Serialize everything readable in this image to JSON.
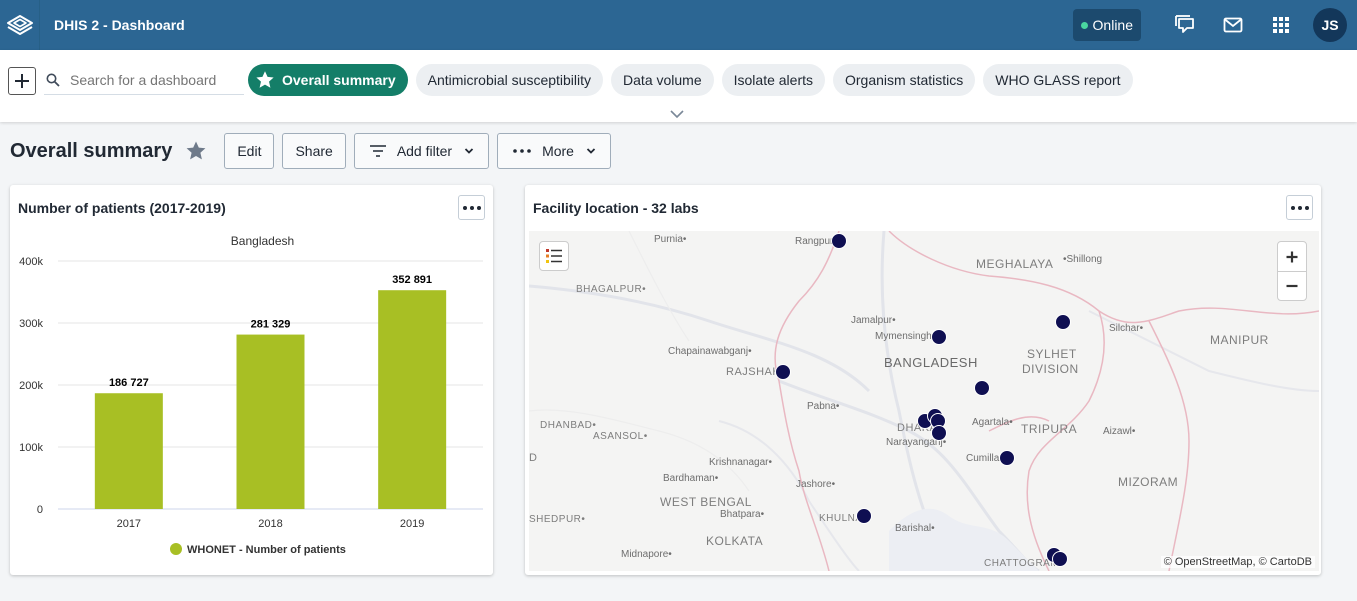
{
  "header": {
    "app_title": "DHIS 2 - Dashboard",
    "online_label": "Online",
    "avatar_initials": "JS",
    "colors": {
      "bar": "#2c6693",
      "online_dot": "#4ad6a0"
    }
  },
  "dashboard_bar": {
    "search_placeholder": "Search for a dashboard",
    "chips": [
      {
        "label": "Overall summary",
        "selected": true,
        "icon": "star-icon"
      },
      {
        "label": "Antimicrobial susceptibility",
        "selected": false
      },
      {
        "label": "Data volume",
        "selected": false
      },
      {
        "label": "Isolate alerts",
        "selected": false
      },
      {
        "label": "Organism statistics",
        "selected": false
      },
      {
        "label": "WHO GLASS report",
        "selected": false
      }
    ]
  },
  "title_bar": {
    "title": "Overall summary",
    "edit_label": "Edit",
    "share_label": "Share",
    "add_filter_label": "Add filter",
    "more_label": "More"
  },
  "patients_card": {
    "title": "Number of patients (2017-2019)"
  },
  "chart_data": {
    "type": "bar",
    "subtitle": "Bangladesh",
    "categories": [
      "2017",
      "2018",
      "2019"
    ],
    "series": [
      {
        "name": "WHONET - Number of patients",
        "values": [
          186727,
          281329,
          352891
        ],
        "labels": [
          "186 727",
          "281 329",
          "352 891"
        ],
        "color": "#a8bf24"
      }
    ],
    "ylim": [
      0,
      400000
    ],
    "yticks": [
      0,
      100000,
      200000,
      300000,
      400000
    ],
    "ytick_labels": [
      "0",
      "100k",
      "200k",
      "300k",
      "400k"
    ],
    "grid": true,
    "legend": "bottom-center"
  },
  "map_card": {
    "title": "Facility location - 32 labs",
    "attribution": "© OpenStreetMap, © CartoDB",
    "labels": [
      {
        "text": "Purnia•",
        "cls": ""
      },
      {
        "text": "Rangpur•",
        "cls": ""
      },
      {
        "text": "MEGHALAYA",
        "cls": "big"
      },
      {
        "text": "•Shillong",
        "cls": ""
      },
      {
        "text": "BHAGALPUR•",
        "cls": "big-s"
      },
      {
        "text": "Jamalpur•",
        "cls": ""
      },
      {
        "text": "Mymensingh•",
        "cls": ""
      },
      {
        "text": "Silchar•",
        "cls": ""
      },
      {
        "text": "MANIPUR",
        "cls": "big"
      },
      {
        "text": "SYLHET",
        "cls": "big"
      },
      {
        "text": "DIVISION",
        "cls": "big"
      },
      {
        "text": "Chapainawabganj•",
        "cls": ""
      },
      {
        "text": "BANGLADESH",
        "cls": "country"
      },
      {
        "text": "RAJSHAHI",
        "cls": "big-s"
      },
      {
        "text": "Pabna•",
        "cls": ""
      },
      {
        "text": "DHANBAD•",
        "cls": "big-s"
      },
      {
        "text": "ASANSOL•",
        "cls": "big-s"
      },
      {
        "text": "DHAKA",
        "cls": "big-s"
      },
      {
        "text": "Agartala•",
        "cls": ""
      },
      {
        "text": "TRIPURA",
        "cls": "big"
      },
      {
        "text": "Aizawl•",
        "cls": ""
      },
      {
        "text": "Narayanganj•",
        "cls": ""
      },
      {
        "text": "Krishnanagar•",
        "cls": ""
      },
      {
        "text": "Cumilla",
        "cls": ""
      },
      {
        "text": "Bardhaman•",
        "cls": ""
      },
      {
        "text": "MIZORAM",
        "cls": "big"
      },
      {
        "text": "D",
        "cls": "big-s"
      },
      {
        "text": "Jashore•",
        "cls": ""
      },
      {
        "text": "WEST BENGAL",
        "cls": "big"
      },
      {
        "text": "SHEDPUR•",
        "cls": "big-s"
      },
      {
        "text": "Bhatpara•",
        "cls": ""
      },
      {
        "text": "KHULNA",
        "cls": "big-s"
      },
      {
        "text": "Barishal•",
        "cls": ""
      },
      {
        "text": "KOLKATA",
        "cls": "big"
      },
      {
        "text": "Midnapore•",
        "cls": ""
      },
      {
        "text": "CHATTOGRAM",
        "cls": "big-s"
      }
    ]
  }
}
